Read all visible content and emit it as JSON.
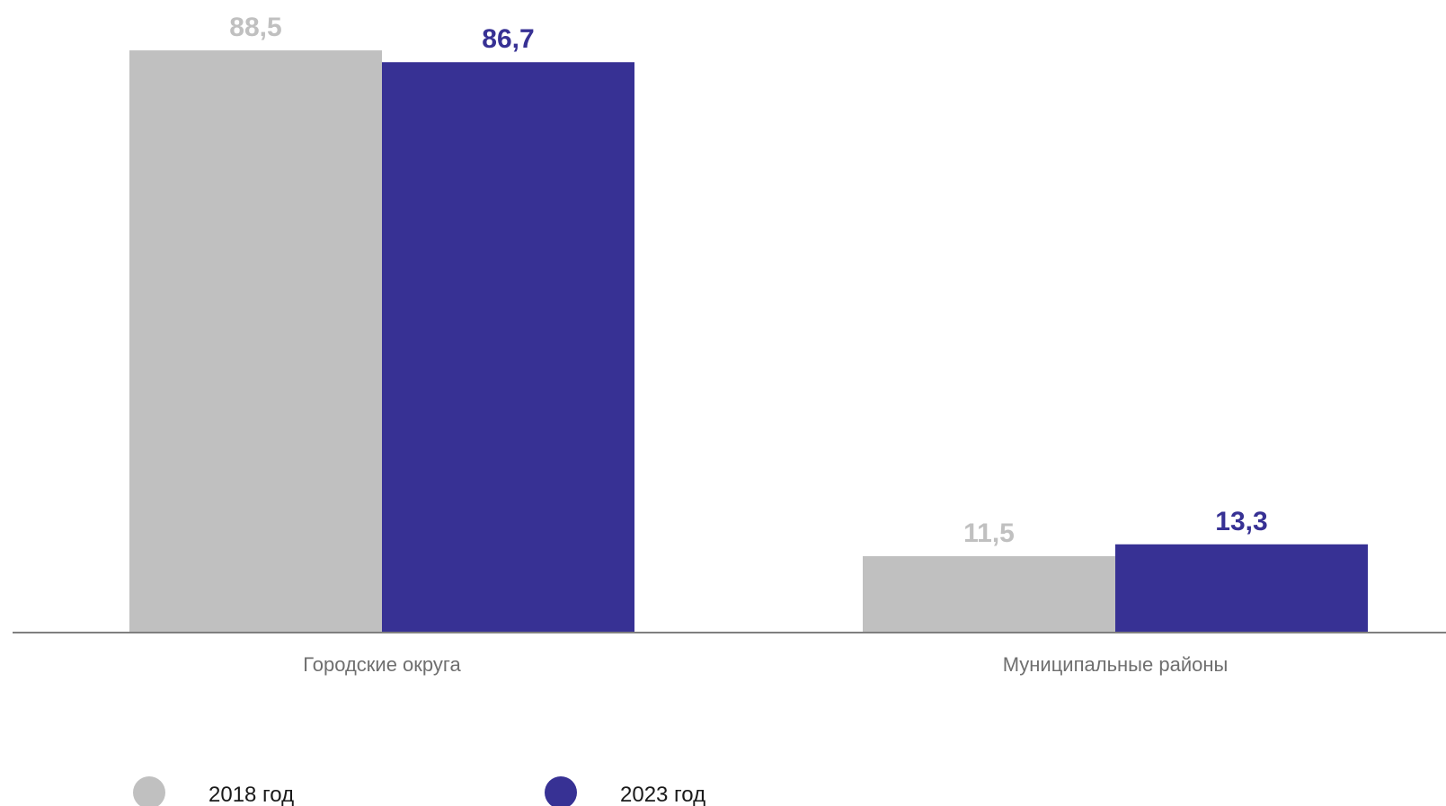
{
  "chart_data": {
    "type": "bar",
    "categories": [
      "Городские округа",
      "Муниципальные районы"
    ],
    "series": [
      {
        "name": "2018 год",
        "values": [
          88.5,
          11.5
        ],
        "labels": [
          "88,5",
          "11,5"
        ],
        "color": "#c0c0c0"
      },
      {
        "name": "2023 год",
        "values": [
          86.7,
          13.3
        ],
        "labels": [
          "86,7",
          "13,3"
        ],
        "color": "#373194"
      }
    ],
    "title": "",
    "xlabel": "",
    "ylabel": "",
    "ylim": [
      0,
      100
    ],
    "grid": false,
    "legend": "bottom-left",
    "axis_color": "#7f7f7f"
  }
}
